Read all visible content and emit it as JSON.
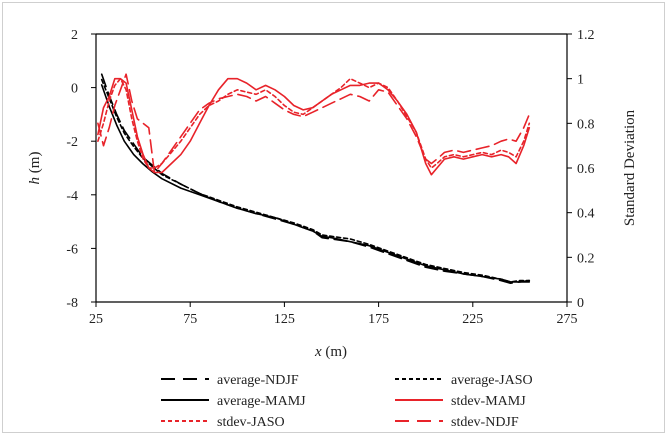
{
  "chart_data": {
    "type": "line",
    "title": "",
    "xlabel_var": "x",
    "xlabel_unit": " (m)",
    "ylabel_var": "h",
    "ylabel_unit": " (m)",
    "y2label": "Standard Deviation",
    "xlim": [
      25,
      275
    ],
    "ylim": [
      -8,
      2
    ],
    "y2lim": [
      0,
      1.2
    ],
    "xticks": [
      25,
      75,
      125,
      175,
      225,
      275
    ],
    "yticks": [
      2,
      0,
      -2,
      -4,
      -6,
      -8
    ],
    "y2ticks": [
      1.2,
      1,
      0.8,
      0.6,
      0.4,
      0.2,
      0
    ],
    "xtick_labels": [
      "25",
      "75",
      "125",
      "175",
      "225",
      "275"
    ],
    "ytick_labels": [
      "2",
      "0",
      "-2",
      "-4",
      "-6",
      "-8"
    ],
    "y2tick_labels": [
      "1.2",
      "1",
      "0.8",
      "0.6",
      "0.4",
      "0.2",
      "0"
    ],
    "grid": false,
    "legend_position": "bottom",
    "series": [
      {
        "name": "average-NDJF",
        "axis": "left",
        "color": "#000000",
        "style": "longdash",
        "x": [
          28,
          32,
          36,
          40,
          45,
          50,
          55,
          60,
          70,
          80,
          90,
          100,
          110,
          120,
          130,
          140,
          145,
          150,
          160,
          170,
          180,
          190,
          200,
          210,
          220,
          230,
          240,
          245,
          250,
          255
        ],
        "y": [
          0.5,
          -0.3,
          -1.0,
          -1.6,
          -2.1,
          -2.6,
          -2.9,
          -3.2,
          -3.6,
          -3.95,
          -4.25,
          -4.5,
          -4.7,
          -4.9,
          -5.1,
          -5.35,
          -5.6,
          -5.65,
          -5.75,
          -5.95,
          -6.2,
          -6.45,
          -6.7,
          -6.85,
          -6.95,
          -7.05,
          -7.2,
          -7.3,
          -7.25,
          -7.25
        ]
      },
      {
        "name": "average-JASO",
        "axis": "left",
        "color": "#000000",
        "style": "dotted",
        "x": [
          28,
          32,
          36,
          40,
          45,
          50,
          55,
          60,
          70,
          80,
          90,
          100,
          110,
          120,
          130,
          140,
          145,
          150,
          160,
          170,
          180,
          190,
          200,
          210,
          220,
          230,
          240,
          245,
          250,
          255
        ],
        "y": [
          0.3,
          -0.4,
          -1.1,
          -1.7,
          -2.2,
          -2.65,
          -2.95,
          -3.25,
          -3.6,
          -3.95,
          -4.2,
          -4.45,
          -4.65,
          -4.85,
          -5.05,
          -5.3,
          -5.5,
          -5.55,
          -5.65,
          -5.85,
          -6.1,
          -6.35,
          -6.6,
          -6.75,
          -6.9,
          -7.0,
          -7.15,
          -7.25,
          -7.2,
          -7.2
        ]
      },
      {
        "name": "average-MAMJ",
        "axis": "left",
        "color": "#000000",
        "style": "solid",
        "x": [
          28,
          32,
          36,
          40,
          45,
          50,
          55,
          60,
          70,
          80,
          90,
          100,
          110,
          120,
          130,
          140,
          145,
          150,
          160,
          170,
          180,
          190,
          200,
          210,
          220,
          230,
          240,
          245,
          250,
          255
        ],
        "y": [
          0.1,
          -0.7,
          -1.4,
          -2.0,
          -2.5,
          -2.85,
          -3.15,
          -3.4,
          -3.75,
          -4.0,
          -4.25,
          -4.5,
          -4.7,
          -4.85,
          -5.1,
          -5.35,
          -5.55,
          -5.6,
          -5.75,
          -5.9,
          -6.15,
          -6.4,
          -6.65,
          -6.8,
          -6.95,
          -7.05,
          -7.15,
          -7.25,
          -7.25,
          -7.2
        ]
      },
      {
        "name": "stdev-MAMJ",
        "axis": "right",
        "color": "#e8232a",
        "style": "solid",
        "x": [
          26,
          29,
          32,
          35,
          38,
          41,
          44,
          47,
          50,
          53,
          56,
          60,
          65,
          70,
          75,
          80,
          85,
          90,
          95,
          100,
          105,
          110,
          115,
          120,
          125,
          130,
          135,
          140,
          145,
          150,
          155,
          160,
          165,
          170,
          175,
          180,
          185,
          190,
          195,
          200,
          203,
          206,
          210,
          215,
          220,
          225,
          230,
          235,
          240,
          244,
          248,
          252,
          255
        ],
        "y": [
          0.75,
          0.87,
          0.92,
          1.0,
          1.0,
          0.98,
          0.86,
          0.74,
          0.66,
          0.6,
          0.58,
          0.58,
          0.62,
          0.66,
          0.72,
          0.8,
          0.88,
          0.95,
          1.0,
          1.0,
          0.98,
          0.95,
          0.97,
          0.95,
          0.92,
          0.88,
          0.86,
          0.87,
          0.9,
          0.93,
          0.95,
          0.97,
          0.97,
          0.98,
          0.98,
          0.95,
          0.9,
          0.84,
          0.76,
          0.62,
          0.57,
          0.6,
          0.64,
          0.65,
          0.64,
          0.65,
          0.66,
          0.65,
          0.66,
          0.65,
          0.62,
          0.7,
          0.78
        ]
      },
      {
        "name": "stdev-JASO",
        "axis": "right",
        "color": "#e8232a",
        "style": "dotted",
        "x": [
          26,
          29,
          32,
          35,
          38,
          41,
          44,
          47,
          50,
          53,
          56,
          60,
          65,
          70,
          75,
          80,
          85,
          90,
          95,
          100,
          105,
          110,
          115,
          120,
          125,
          130,
          135,
          140,
          145,
          150,
          155,
          160,
          165,
          170,
          175,
          180,
          185,
          190,
          195,
          200,
          203,
          206,
          210,
          215,
          220,
          225,
          230,
          235,
          240,
          244,
          248,
          252,
          255
        ],
        "y": [
          0.72,
          0.8,
          0.9,
          0.97,
          1.0,
          0.95,
          0.82,
          0.72,
          0.64,
          0.6,
          0.6,
          0.62,
          0.67,
          0.72,
          0.78,
          0.84,
          0.88,
          0.9,
          0.93,
          0.95,
          0.94,
          0.93,
          0.95,
          0.92,
          0.88,
          0.85,
          0.84,
          0.87,
          0.9,
          0.93,
          0.96,
          1.0,
          0.98,
          0.96,
          0.98,
          0.96,
          0.9,
          0.83,
          0.76,
          0.64,
          0.6,
          0.62,
          0.65,
          0.66,
          0.65,
          0.66,
          0.67,
          0.66,
          0.68,
          0.67,
          0.65,
          0.72,
          0.8
        ]
      },
      {
        "name": "stdev-NDJF",
        "axis": "right",
        "color": "#e8232a",
        "style": "longdash",
        "x": [
          26,
          29,
          32,
          35,
          38,
          41,
          44,
          47,
          50,
          53,
          56,
          60,
          65,
          70,
          75,
          80,
          85,
          90,
          95,
          100,
          105,
          110,
          115,
          120,
          125,
          130,
          135,
          140,
          145,
          150,
          155,
          160,
          165,
          170,
          175,
          180,
          185,
          190,
          195,
          200,
          203,
          206,
          210,
          215,
          220,
          225,
          230,
          235,
          240,
          244,
          248,
          252,
          255
        ],
        "y": [
          0.8,
          0.7,
          0.78,
          0.88,
          0.95,
          1.02,
          0.9,
          0.82,
          0.8,
          0.78,
          0.58,
          0.62,
          0.68,
          0.74,
          0.8,
          0.86,
          0.89,
          0.91,
          0.92,
          0.93,
          0.92,
          0.9,
          0.92,
          0.89,
          0.86,
          0.84,
          0.83,
          0.85,
          0.87,
          0.89,
          0.91,
          0.93,
          0.92,
          0.9,
          0.95,
          0.94,
          0.88,
          0.82,
          0.74,
          0.64,
          0.62,
          0.64,
          0.67,
          0.68,
          0.67,
          0.68,
          0.69,
          0.7,
          0.72,
          0.73,
          0.72,
          0.78,
          0.84
        ]
      }
    ]
  }
}
